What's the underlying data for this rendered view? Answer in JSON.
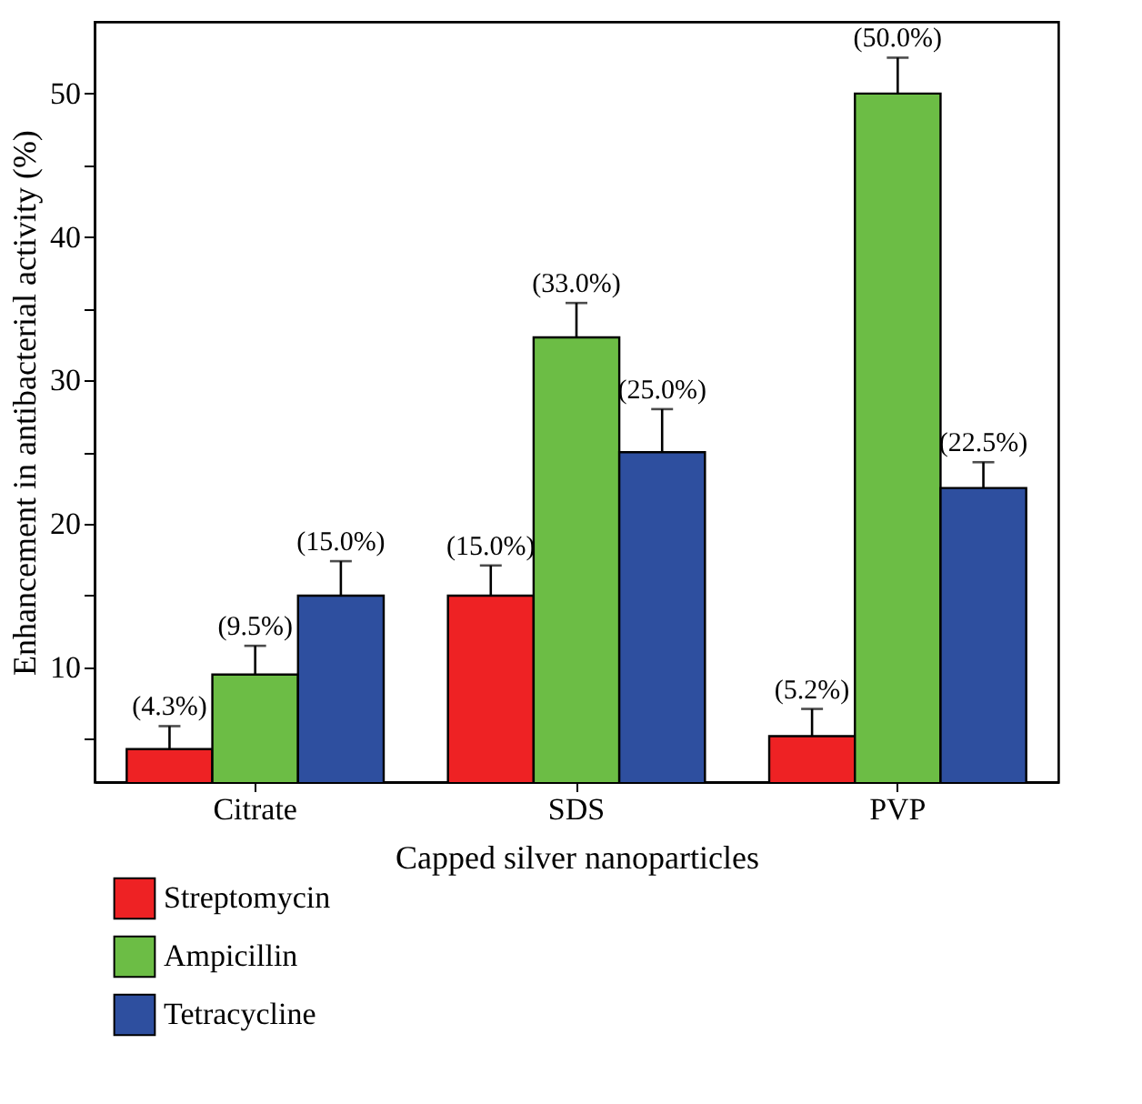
{
  "chart_data": {
    "type": "bar",
    "xlabel": "Capped silver nanoparticles",
    "ylabel": "Enhancement in antibacterial activity (%)",
    "categories": [
      "Citrate",
      "SDS",
      "PVP"
    ],
    "series": [
      {
        "name": "Streptomycin",
        "color": "#ee2224",
        "values": [
          4.3,
          15.0,
          5.2
        ],
        "errors": [
          1.6,
          2.1,
          1.9
        ],
        "value_labels": [
          "(4.3%)",
          "(15.0%)",
          "(5.2%)"
        ]
      },
      {
        "name": "Ampicillin",
        "color": "#6cbd45",
        "values": [
          9.5,
          33.0,
          50.0
        ],
        "errors": [
          2.0,
          2.4,
          2.5
        ],
        "value_labels": [
          "(9.5%)",
          "(33.0%)",
          "(50.0%)"
        ]
      },
      {
        "name": "Tetracycline",
        "color": "#2e4f9f",
        "values": [
          15.0,
          25.0,
          22.5
        ],
        "errors": [
          2.4,
          3.0,
          1.8
        ],
        "value_labels": [
          "(15.0%)",
          "(25.0%)",
          "(22.5%)"
        ]
      }
    ],
    "ylim": [
      2,
      55
    ],
    "yticks": [
      {
        "value": 5,
        "label": null
      },
      10,
      {
        "value": 15,
        "label": null
      },
      20,
      {
        "value": 25,
        "label": null
      },
      30,
      {
        "value": 35,
        "label": null
      },
      40,
      {
        "value": 45,
        "label": null
      },
      50
    ],
    "grid": false,
    "legend": "bottom"
  }
}
